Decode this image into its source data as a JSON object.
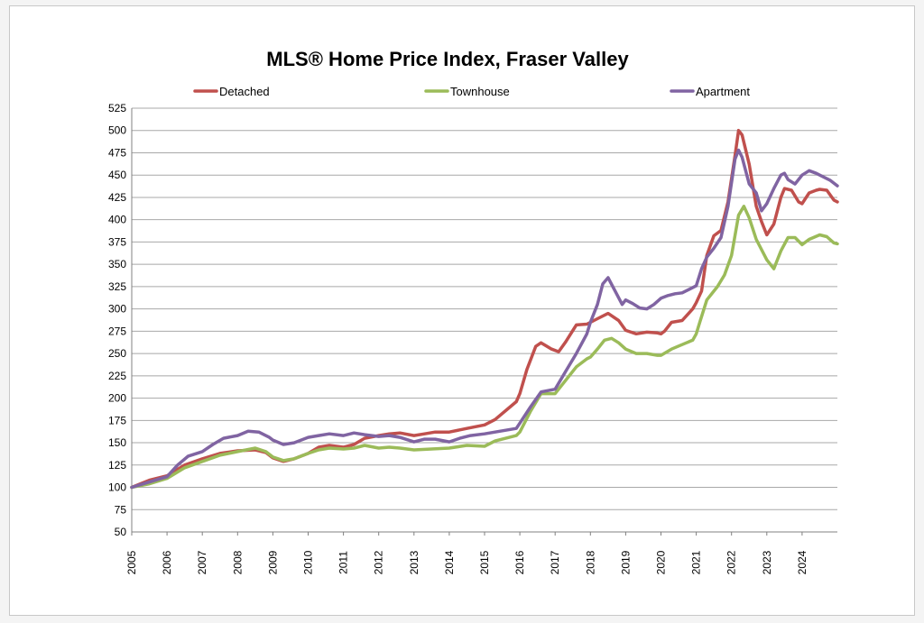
{
  "chart_data": {
    "type": "line",
    "title": "MLS® Home Price Index, Fraser Valley",
    "xlabel": "",
    "ylabel": "",
    "ylim": [
      50,
      525
    ],
    "yticks": [
      50,
      75,
      100,
      125,
      150,
      175,
      200,
      225,
      250,
      275,
      300,
      325,
      350,
      375,
      400,
      425,
      450,
      475,
      500,
      525
    ],
    "xlim": [
      2005,
      2025
    ],
    "xticks": [
      "2005",
      "2006",
      "2007",
      "2008",
      "2009",
      "2010",
      "2011",
      "2012",
      "2013",
      "2014",
      "2015",
      "2016",
      "2017",
      "2018",
      "2019",
      "2020",
      "2021",
      "2022",
      "2023",
      "2024"
    ],
    "grid": true,
    "legend_position": "top",
    "series": [
      {
        "name": "Detached",
        "color": "#c0504d",
        "x": [
          2005.0,
          2005.5,
          2006.0,
          2006.5,
          2007.0,
          2007.5,
          2008.0,
          2008.5,
          2008.8,
          2009.0,
          2009.3,
          2009.6,
          2010.0,
          2010.3,
          2010.6,
          2011.0,
          2011.3,
          2011.6,
          2012.0,
          2012.3,
          2012.6,
          2013.0,
          2013.3,
          2013.6,
          2014.0,
          2014.5,
          2015.0,
          2015.3,
          2015.6,
          2015.9,
          2016.0,
          2016.2,
          2016.45,
          2016.6,
          2016.9,
          2017.1,
          2017.3,
          2017.6,
          2017.9,
          2018.0,
          2018.2,
          2018.5,
          2018.8,
          2019.0,
          2019.3,
          2019.6,
          2019.9,
          2020.0,
          2020.1,
          2020.3,
          2020.6,
          2020.9,
          2021.0,
          2021.15,
          2021.3,
          2021.5,
          2021.7,
          2021.9,
          2022.1,
          2022.2,
          2022.3,
          2022.5,
          2022.7,
          2022.85,
          2023.0,
          2023.2,
          2023.4,
          2023.5,
          2023.7,
          2023.9,
          2024.0,
          2024.2,
          2024.4,
          2024.5,
          2024.7,
          2024.9,
          2025.0
        ],
        "values": [
          100,
          108,
          113,
          125,
          132,
          138,
          141,
          142,
          139,
          133,
          129,
          132,
          138,
          145,
          147,
          145,
          148,
          155,
          158,
          160,
          161,
          158,
          160,
          162,
          162,
          166,
          170,
          176,
          186,
          196,
          205,
          232,
          258,
          262,
          255,
          252,
          263,
          282,
          283,
          285,
          289,
          295,
          287,
          276,
          272,
          274,
          273,
          272,
          275,
          285,
          287,
          300,
          307,
          320,
          360,
          382,
          388,
          420,
          472,
          500,
          495,
          462,
          415,
          398,
          383,
          395,
          425,
          435,
          433,
          420,
          418,
          430,
          433,
          434,
          433,
          422,
          420
        ]
      },
      {
        "name": "Townhouse",
        "color": "#9bbb59",
        "x": [
          2005.0,
          2005.5,
          2006.0,
          2006.5,
          2007.0,
          2007.5,
          2008.0,
          2008.5,
          2008.8,
          2009.0,
          2009.3,
          2009.6,
          2010.0,
          2010.3,
          2010.6,
          2011.0,
          2011.3,
          2011.6,
          2012.0,
          2012.3,
          2012.6,
          2013.0,
          2013.5,
          2014.0,
          2014.5,
          2015.0,
          2015.3,
          2015.6,
          2015.9,
          2016.0,
          2016.3,
          2016.6,
          2017.0,
          2017.3,
          2017.6,
          2017.9,
          2018.0,
          2018.2,
          2018.4,
          2018.6,
          2018.8,
          2019.0,
          2019.3,
          2019.6,
          2019.9,
          2020.0,
          2020.3,
          2020.6,
          2020.9,
          2021.0,
          2021.1,
          2021.3,
          2021.6,
          2021.8,
          2022.0,
          2022.2,
          2022.35,
          2022.5,
          2022.7,
          2023.0,
          2023.2,
          2023.4,
          2023.6,
          2023.8,
          2024.0,
          2024.2,
          2024.5,
          2024.7,
          2024.9,
          2025.0
        ],
        "values": [
          100,
          104,
          110,
          122,
          129,
          136,
          140,
          144,
          140,
          134,
          130,
          132,
          138,
          142,
          144,
          143,
          144,
          147,
          144,
          145,
          144,
          142,
          143,
          144,
          147,
          146,
          152,
          155,
          158,
          162,
          185,
          205,
          205,
          220,
          235,
          244,
          246,
          255,
          265,
          267,
          262,
          255,
          250,
          250,
          248,
          248,
          255,
          260,
          265,
          272,
          285,
          310,
          325,
          338,
          360,
          405,
          415,
          402,
          378,
          355,
          345,
          365,
          380,
          380,
          372,
          378,
          383,
          381,
          374,
          373
        ]
      },
      {
        "name": "Apartment",
        "color": "#8064a2",
        "x": [
          2005.0,
          2005.5,
          2006.0,
          2006.3,
          2006.6,
          2007.0,
          2007.3,
          2007.6,
          2008.0,
          2008.3,
          2008.6,
          2008.9,
          2009.0,
          2009.3,
          2009.6,
          2010.0,
          2010.3,
          2010.6,
          2011.0,
          2011.3,
          2011.6,
          2012.0,
          2012.3,
          2012.6,
          2013.0,
          2013.3,
          2013.6,
          2014.0,
          2014.3,
          2014.6,
          2015.0,
          2015.3,
          2015.6,
          2015.9,
          2016.0,
          2016.3,
          2016.6,
          2017.0,
          2017.3,
          2017.6,
          2017.9,
          2018.0,
          2018.2,
          2018.35,
          2018.5,
          2018.7,
          2018.9,
          2019.0,
          2019.2,
          2019.4,
          2019.6,
          2019.8,
          2020.0,
          2020.2,
          2020.4,
          2020.6,
          2020.8,
          2021.0,
          2021.15,
          2021.3,
          2021.5,
          2021.7,
          2021.9,
          2022.1,
          2022.2,
          2022.3,
          2022.5,
          2022.7,
          2022.85,
          2023.0,
          2023.2,
          2023.4,
          2023.5,
          2023.6,
          2023.8,
          2024.0,
          2024.2,
          2024.4,
          2024.6,
          2024.8,
          2025.0
        ],
        "values": [
          100,
          106,
          112,
          125,
          135,
          140,
          148,
          155,
          158,
          163,
          162,
          156,
          153,
          148,
          150,
          156,
          158,
          160,
          158,
          161,
          159,
          157,
          158,
          156,
          151,
          154,
          154,
          151,
          155,
          158,
          160,
          162,
          164,
          166,
          172,
          190,
          207,
          210,
          230,
          250,
          272,
          285,
          305,
          328,
          335,
          320,
          305,
          310,
          306,
          301,
          300,
          305,
          312,
          315,
          317,
          318,
          322,
          326,
          345,
          358,
          368,
          380,
          415,
          468,
          478,
          470,
          440,
          430,
          410,
          418,
          435,
          450,
          452,
          445,
          440,
          450,
          455,
          452,
          448,
          444,
          438
        ]
      }
    ]
  }
}
